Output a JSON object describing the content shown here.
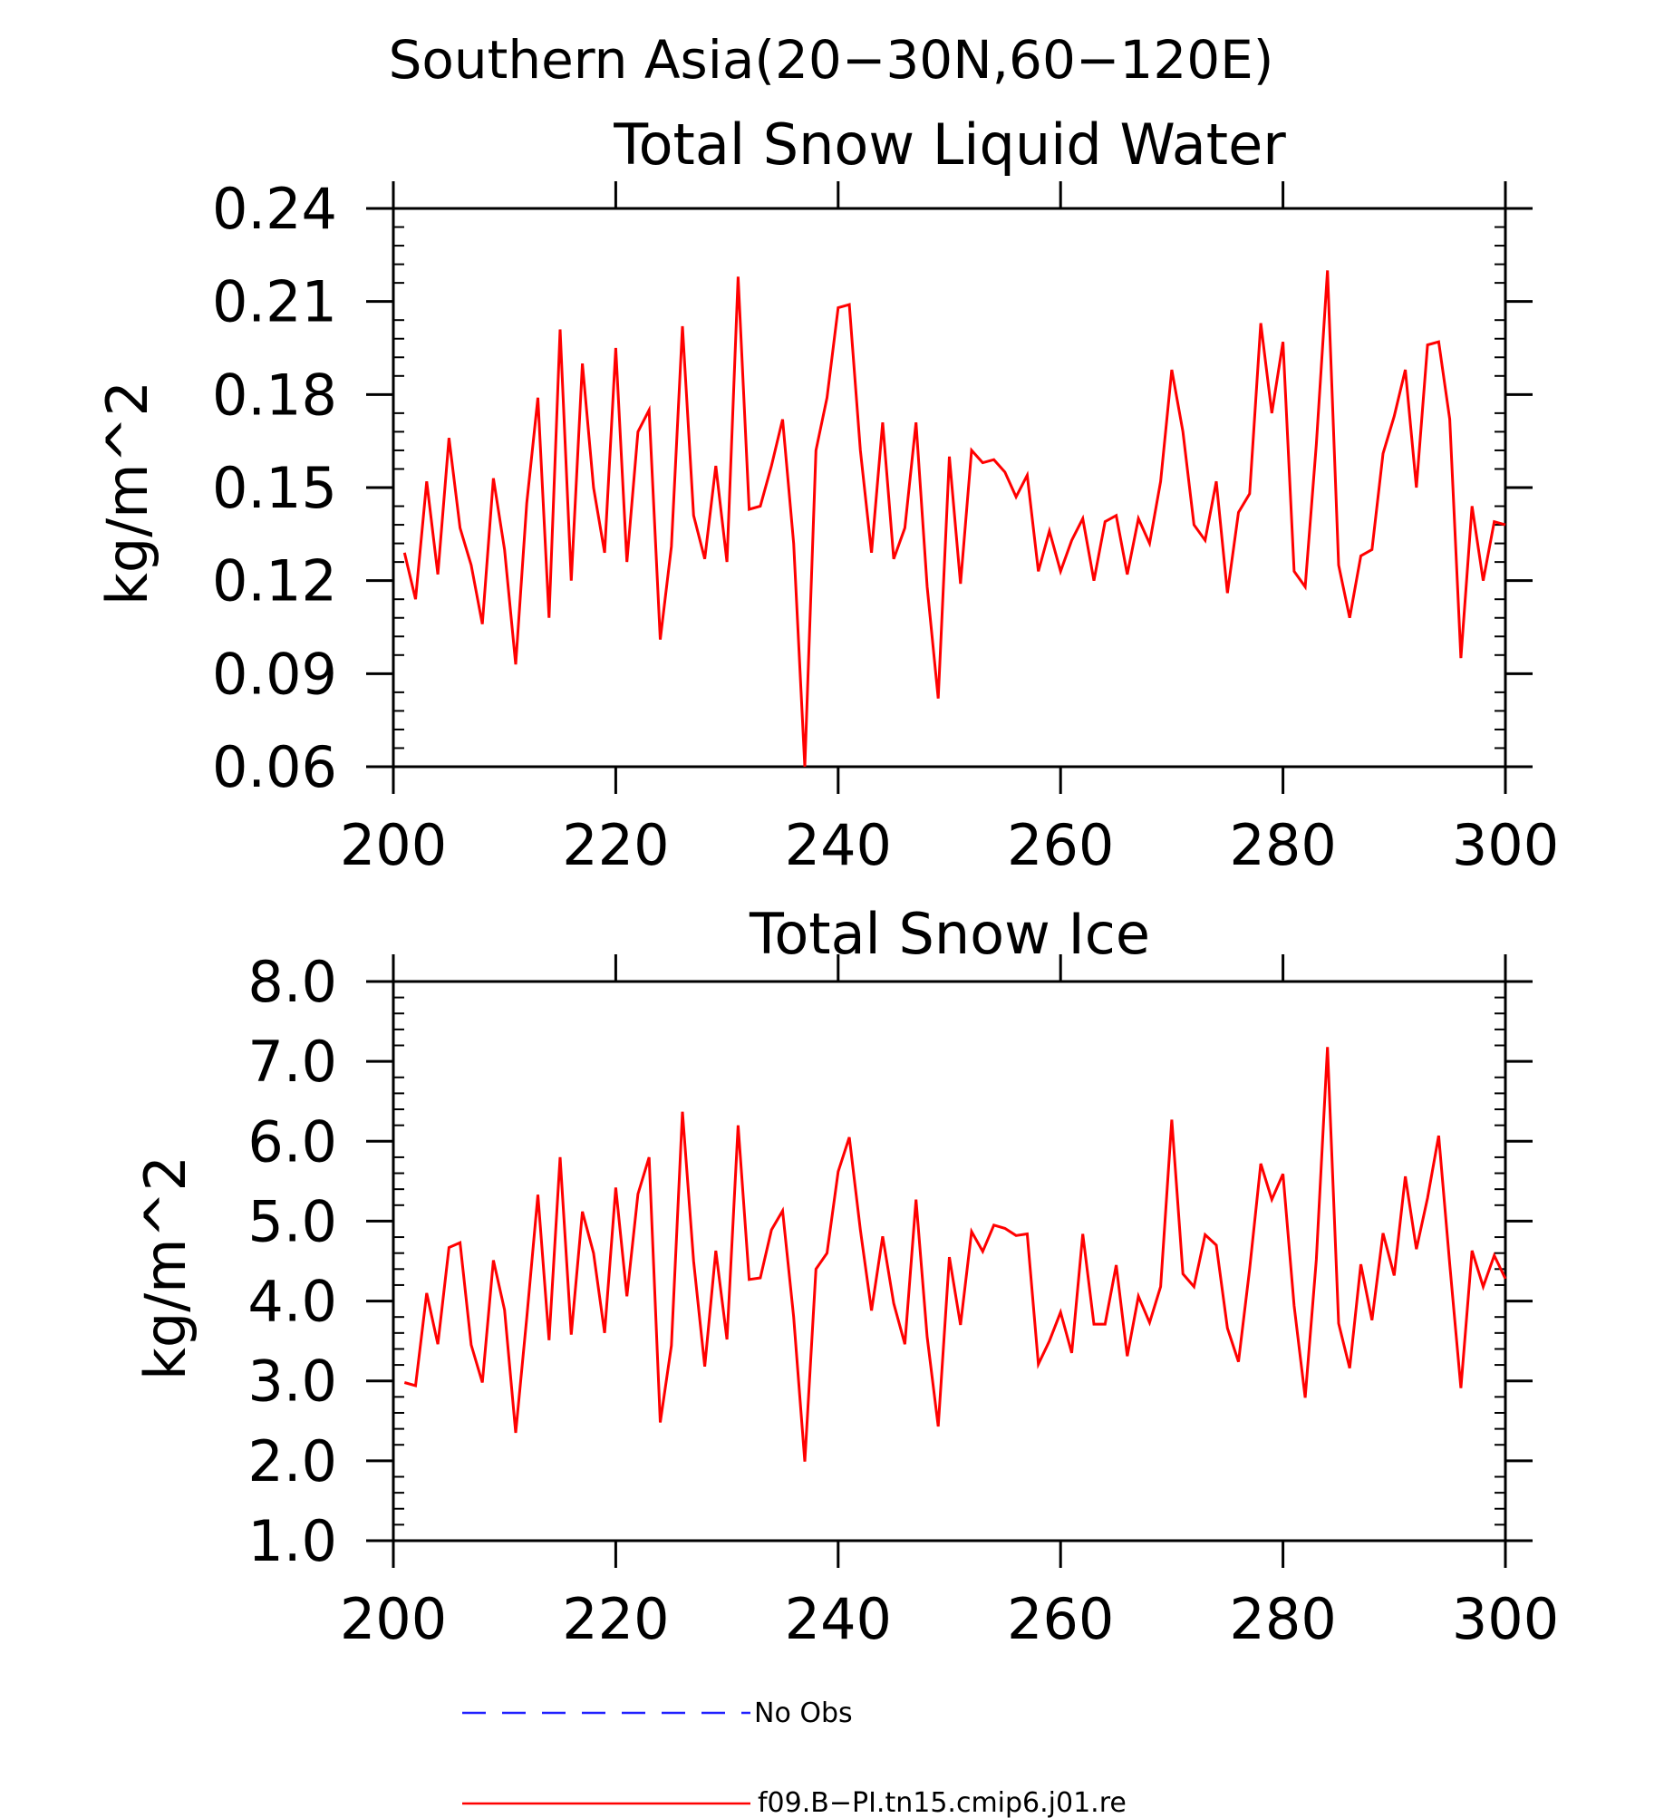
{
  "page_title": "Southern Asia(20−30N,60−120E)",
  "colors": {
    "model_line": "#ff0000",
    "obs_line": "#1f1fff",
    "axes": "#000000"
  },
  "legend": [
    {
      "label": "No Obs",
      "style": "dashed",
      "color": "#1f1fff"
    },
    {
      "label": "f09.B−PI.tn15.cmip6.j01.re",
      "style": "solid",
      "color": "#ff0000"
    }
  ],
  "chart_data": [
    {
      "type": "line",
      "title": "Total Snow Liquid Water",
      "ylabel": "kg/m^2",
      "xlabel": "",
      "xlim": [
        200,
        300
      ],
      "ylim": [
        0.06,
        0.24
      ],
      "xticks": [
        "200",
        "220",
        "240",
        "260",
        "280",
        "300"
      ],
      "yticks": [
        "0.06",
        "0.09",
        "0.12",
        "0.15",
        "0.18",
        "0.21",
        "0.24"
      ],
      "grid": false,
      "series": [
        {
          "name": "f09.B−PI.tn15.cmip6.j01.re",
          "x_start": 201,
          "x_step": 1,
          "values": [
            0.129,
            0.114,
            0.152,
            0.122,
            0.166,
            0.137,
            0.125,
            0.106,
            0.153,
            0.13,
            0.093,
            0.145,
            0.179,
            0.108,
            0.201,
            0.12,
            0.19,
            0.15,
            0.129,
            0.195,
            0.126,
            0.168,
            0.175,
            0.101,
            0.131,
            0.202,
            0.141,
            0.127,
            0.157,
            0.126,
            0.218,
            0.143,
            0.144,
            0.157,
            0.172,
            0.132,
            0.06,
            0.162,
            0.179,
            0.208,
            0.209,
            0.162,
            0.129,
            0.171,
            0.127,
            0.137,
            0.171,
            0.118,
            0.082,
            0.16,
            0.119,
            0.162,
            0.158,
            0.159,
            0.155,
            0.147,
            0.154,
            0.123,
            0.136,
            0.123,
            0.133,
            0.14,
            0.12,
            0.139,
            0.141,
            0.122,
            0.14,
            0.132,
            0.152,
            0.188,
            0.168,
            0.138,
            0.133,
            0.152,
            0.116,
            0.142,
            0.148,
            0.203,
            0.174,
            0.197,
            0.123,
            0.118,
            0.164,
            0.22,
            0.125,
            0.108,
            0.128,
            0.13,
            0.161,
            0.173,
            0.188,
            0.15,
            0.196,
            0.197,
            0.172,
            0.095,
            0.144,
            0.12,
            0.139,
            0.138
          ]
        }
      ]
    },
    {
      "type": "line",
      "title": "Total Snow Ice",
      "ylabel": "kg/m^2",
      "xlabel": "",
      "xlim": [
        200,
        300
      ],
      "ylim": [
        1.0,
        8.0
      ],
      "xticks": [
        "200",
        "220",
        "240",
        "260",
        "280",
        "300"
      ],
      "yticks": [
        "1.0",
        "2.0",
        "3.0",
        "4.0",
        "5.0",
        "6.0",
        "7.0",
        "8.0"
      ],
      "grid": false,
      "series": [
        {
          "name": "f09.B−PI.tn15.cmip6.j01.re",
          "x_start": 201,
          "x_step": 1,
          "values": [
            2.98,
            2.94,
            4.1,
            3.46,
            4.67,
            4.73,
            3.45,
            2.98,
            4.51,
            3.89,
            2.35,
            3.79,
            5.33,
            3.51,
            5.8,
            3.58,
            5.12,
            4.6,
            3.6,
            5.42,
            4.06,
            5.34,
            5.8,
            2.48,
            3.44,
            6.37,
            4.5,
            3.18,
            4.63,
            3.52,
            6.2,
            4.27,
            4.29,
            4.89,
            5.13,
            3.8,
            1.99,
            4.4,
            4.6,
            5.62,
            6.05,
            4.89,
            3.88,
            4.81,
            3.97,
            3.46,
            5.27,
            3.55,
            2.43,
            4.55,
            3.7,
            4.87,
            4.62,
            4.95,
            4.91,
            4.82,
            4.84,
            3.21,
            3.5,
            3.86,
            3.35,
            4.84,
            3.71,
            3.71,
            4.45,
            3.31,
            4.06,
            3.73,
            4.18,
            6.27,
            4.34,
            4.18,
            4.83,
            4.7,
            3.66,
            3.24,
            4.4,
            5.72,
            5.27,
            5.59,
            3.94,
            2.79,
            4.52,
            7.18,
            3.72,
            3.16,
            4.46,
            3.76,
            4.85,
            4.32,
            5.56,
            4.65,
            5.29,
            6.07,
            4.46,
            2.91,
            4.63,
            4.18,
            4.57,
            4.28
          ]
        }
      ]
    }
  ]
}
